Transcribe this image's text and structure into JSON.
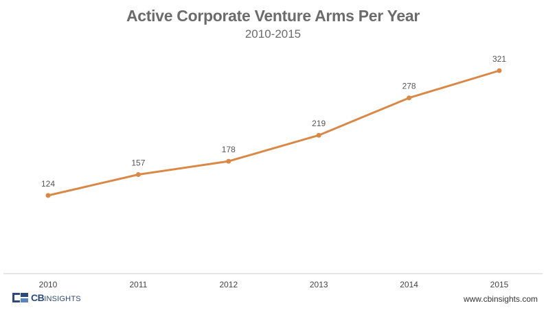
{
  "chart_data": {
    "type": "line",
    "title": "Active Corporate Venture Arms Per Year",
    "subtitle": "2010-2015",
    "categories": [
      "2010",
      "2011",
      "2012",
      "2013",
      "2014",
      "2015"
    ],
    "values": [
      124,
      157,
      178,
      219,
      278,
      321
    ],
    "data_labels": [
      "124",
      "157",
      "178",
      "219",
      "278",
      "321"
    ],
    "xlabel": "",
    "ylabel": "",
    "ylim": [
      0,
      350
    ],
    "grid": false,
    "legend": "none",
    "line_color": "#d98845"
  },
  "branding": {
    "logo_text_bold": "CB",
    "logo_text_light": "INSIGHTS",
    "logo_color": "#2b4a77",
    "website": "www.cbinsights.com"
  }
}
